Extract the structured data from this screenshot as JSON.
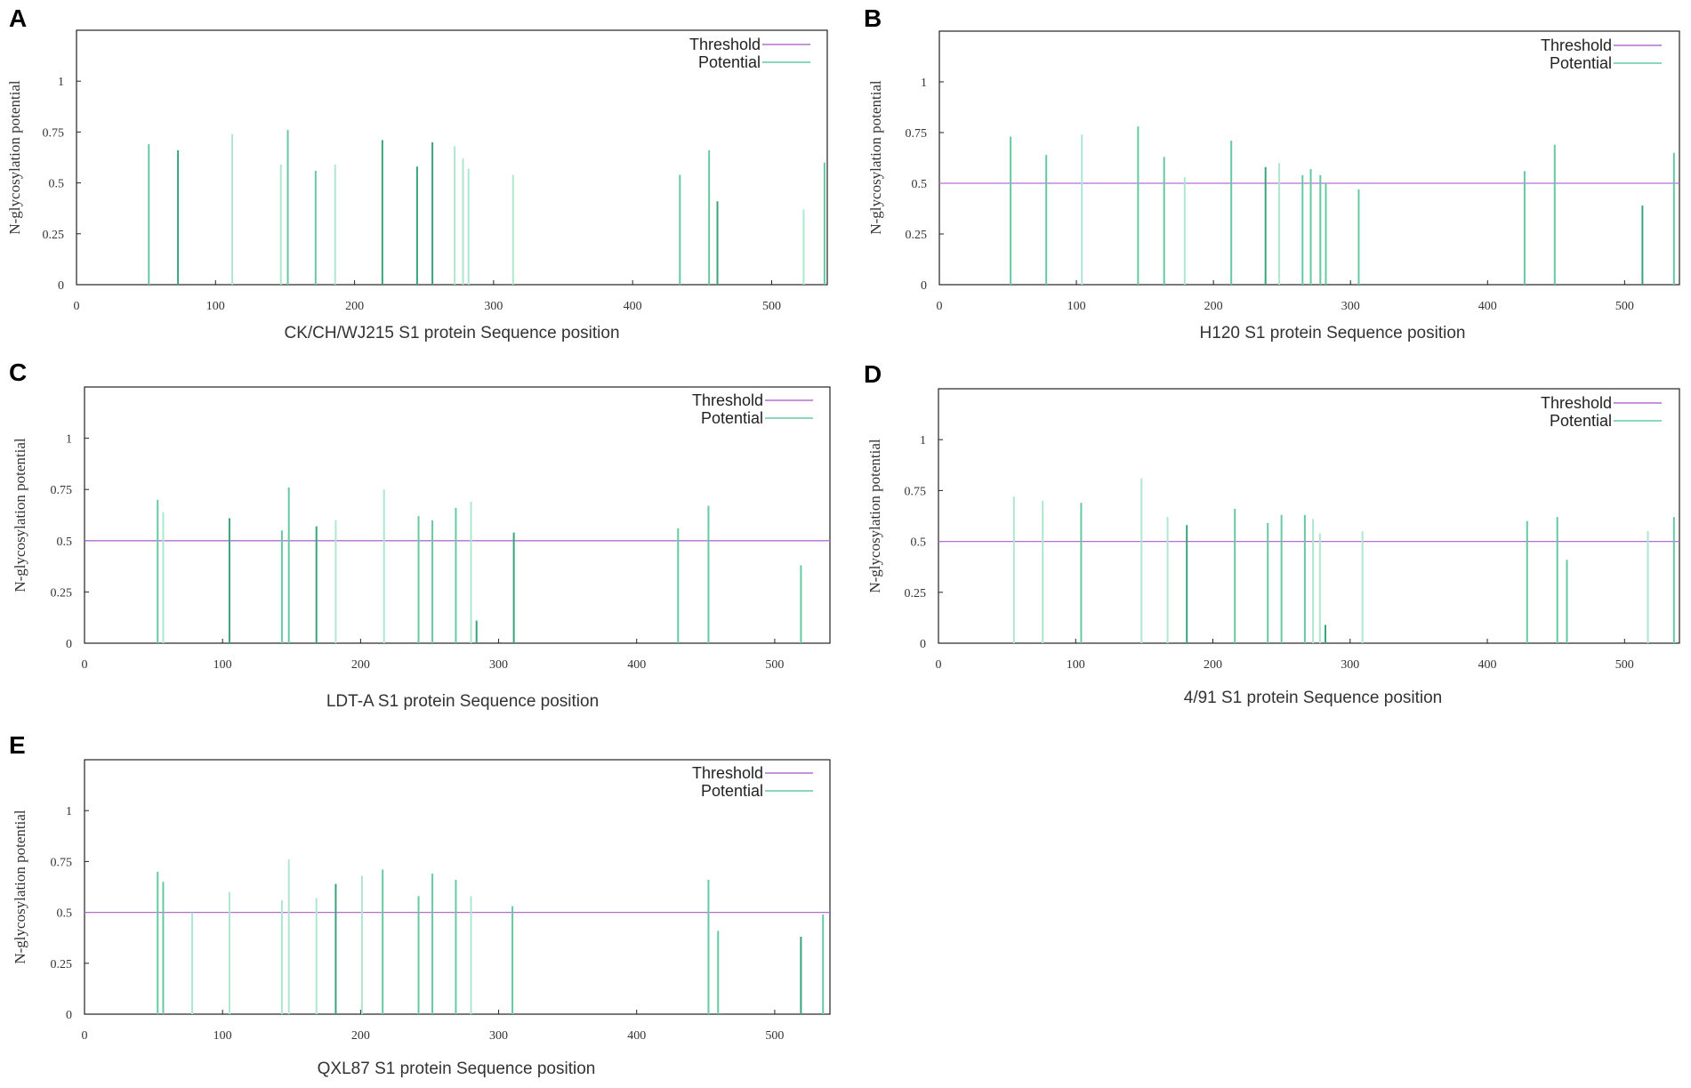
{
  "colors": {
    "threshold": "#b36fd0",
    "potential_dark": "#3aa37c",
    "potential_mid": "#66c9a2",
    "potential_light": "#aee6d0",
    "axis": "#222222"
  },
  "chart_data": [
    {
      "type": "bar",
      "panel": "A",
      "title": "",
      "xlabel": "CK/CH/WJ215 S1 protein Sequence position",
      "ylabel": "N-glycosylation potential",
      "xlim": [
        0,
        540
      ],
      "ylim": [
        0,
        1.25
      ],
      "xticks": [
        0,
        100,
        200,
        300,
        400,
        500
      ],
      "yticks": [
        0,
        0.25,
        0.5,
        0.75,
        1
      ],
      "ytick_labels": [
        "0",
        "0.25",
        "0.5",
        "0.75",
        "1"
      ],
      "legend": [
        "Threshold",
        "Potential"
      ],
      "legend_position": "top-right",
      "threshold": 0.5,
      "threshold_visible": false,
      "series": [
        {
          "name": "Potential",
          "x": [
            52,
            73,
            112,
            147,
            152,
            172,
            186,
            220,
            245,
            256,
            272,
            278,
            282,
            314,
            434,
            455,
            461,
            523,
            538
          ],
          "values": [
            0.69,
            0.66,
            0.74,
            0.59,
            0.76,
            0.56,
            0.59,
            0.71,
            0.58,
            0.7,
            0.68,
            0.62,
            0.57,
            0.54,
            0.54,
            0.66,
            0.41,
            0.37,
            0.6
          ],
          "shade": [
            "m",
            "d",
            "l",
            "l",
            "m",
            "m",
            "l",
            "d",
            "d",
            "d",
            "l",
            "l",
            "l",
            "l",
            "m",
            "m",
            "d",
            "l",
            "m"
          ]
        }
      ]
    },
    {
      "type": "bar",
      "panel": "B",
      "title": "",
      "xlabel": "H120 S1 protein Sequence position",
      "ylabel": "N-glycosylation potential",
      "xlim": [
        0,
        540
      ],
      "ylim": [
        0,
        1.25
      ],
      "xticks": [
        0,
        100,
        200,
        300,
        400,
        500
      ],
      "yticks": [
        0,
        0.25,
        0.5,
        0.75,
        1
      ],
      "ytick_labels": [
        "0",
        "0.25",
        "0.5",
        "0.75",
        "1"
      ],
      "legend": [
        "Threshold",
        "Potential"
      ],
      "legend_position": "top-right",
      "threshold": 0.5,
      "threshold_visible": true,
      "series": [
        {
          "name": "Potential",
          "x": [
            52,
            78,
            104,
            145,
            164,
            179,
            213,
            238,
            248,
            265,
            271,
            278,
            282,
            306,
            427,
            449,
            513,
            536
          ],
          "values": [
            0.73,
            0.64,
            0.74,
            0.78,
            0.63,
            0.53,
            0.71,
            0.58,
            0.6,
            0.54,
            0.57,
            0.54,
            0.5,
            0.47,
            0.56,
            0.69,
            0.39,
            0.65
          ],
          "shade": [
            "m",
            "m",
            "l",
            "m",
            "m",
            "l",
            "m",
            "d",
            "l",
            "m",
            "m",
            "m",
            "m",
            "m",
            "m",
            "m",
            "d",
            "m"
          ]
        }
      ]
    },
    {
      "type": "bar",
      "panel": "C",
      "title": "",
      "xlabel": "LDT-A S1 protein Sequence position",
      "ylabel": "N-glycosylation potential",
      "xlim": [
        0,
        540
      ],
      "ylim": [
        0,
        1.25
      ],
      "xticks": [
        0,
        100,
        200,
        300,
        400,
        500
      ],
      "yticks": [
        0,
        0.25,
        0.5,
        0.75,
        1
      ],
      "ytick_labels": [
        "0",
        "0.25",
        "0.5",
        "0.75",
        "1"
      ],
      "legend": [
        "Threshold",
        "Potential"
      ],
      "legend_position": "top-right",
      "threshold": 0.5,
      "threshold_visible": true,
      "series": [
        {
          "name": "Potential",
          "x": [
            53,
            57,
            105,
            143,
            148,
            168,
            182,
            217,
            242,
            252,
            269,
            280,
            284,
            311,
            430,
            452,
            519
          ],
          "values": [
            0.7,
            0.64,
            0.61,
            0.55,
            0.76,
            0.57,
            0.6,
            0.75,
            0.62,
            0.6,
            0.66,
            0.69,
            0.11,
            0.54,
            0.56,
            0.67,
            0.38
          ],
          "shade": [
            "m",
            "l",
            "d",
            "m",
            "m",
            "d",
            "l",
            "l",
            "m",
            "m",
            "m",
            "l",
            "d",
            "d",
            "m",
            "m",
            "m"
          ]
        }
      ]
    },
    {
      "type": "bar",
      "panel": "D",
      "title": "",
      "xlabel": "4/91 S1 protein Sequence position",
      "ylabel": "N-glycosylation potential",
      "xlim": [
        0,
        540
      ],
      "ylim": [
        0,
        1.25
      ],
      "xticks": [
        0,
        100,
        200,
        300,
        400,
        500
      ],
      "yticks": [
        0,
        0.25,
        0.5,
        0.75,
        1
      ],
      "ytick_labels": [
        "0",
        "0.25",
        "0.5",
        "0.75",
        "1"
      ],
      "legend": [
        "Threshold",
        "Potential"
      ],
      "legend_position": "top-right",
      "threshold": 0.5,
      "threshold_visible": true,
      "series": [
        {
          "name": "Potential",
          "x": [
            55,
            76,
            104,
            148,
            167,
            181,
            216,
            240,
            250,
            267,
            273,
            278,
            282,
            309,
            429,
            451,
            458,
            517,
            536
          ],
          "values": [
            0.72,
            0.7,
            0.69,
            0.81,
            0.62,
            0.58,
            0.66,
            0.59,
            0.63,
            0.63,
            0.61,
            0.54,
            0.09,
            0.55,
            0.6,
            0.62,
            0.41,
            0.55,
            0.62
          ],
          "shade": [
            "l",
            "l",
            "m",
            "l",
            "l",
            "d",
            "m",
            "m",
            "m",
            "m",
            "l",
            "l",
            "d",
            "l",
            "m",
            "m",
            "m",
            "l",
            "m"
          ]
        }
      ]
    },
    {
      "type": "bar",
      "panel": "E",
      "title": "",
      "xlabel": "QXL87 S1 protein Sequence position",
      "ylabel": "N-glycosylation potential",
      "xlim": [
        0,
        540
      ],
      "ylim": [
        0,
        1.25
      ],
      "xticks": [
        0,
        100,
        200,
        300,
        400,
        500
      ],
      "yticks": [
        0,
        0.25,
        0.5,
        0.75,
        1
      ],
      "ytick_labels": [
        "0",
        "0.25",
        "0.5",
        "0.75",
        "1"
      ],
      "legend": [
        "Threshold",
        "Potential"
      ],
      "legend_position": "top-right",
      "threshold": 0.5,
      "threshold_visible": true,
      "series": [
        {
          "name": "Potential",
          "x": [
            53,
            57,
            78,
            105,
            143,
            148,
            168,
            182,
            201,
            216,
            242,
            252,
            269,
            280,
            310,
            452,
            459,
            519,
            535
          ],
          "values": [
            0.7,
            0.65,
            0.5,
            0.6,
            0.56,
            0.76,
            0.57,
            0.64,
            0.68,
            0.71,
            0.58,
            0.69,
            0.66,
            0.58,
            0.53,
            0.66,
            0.41,
            0.38,
            0.49
          ],
          "shade": [
            "m",
            "m",
            "l",
            "l",
            "l",
            "l",
            "l",
            "d",
            "l",
            "m",
            "m",
            "m",
            "m",
            "l",
            "m",
            "m",
            "m",
            "d",
            "m"
          ]
        }
      ]
    }
  ]
}
